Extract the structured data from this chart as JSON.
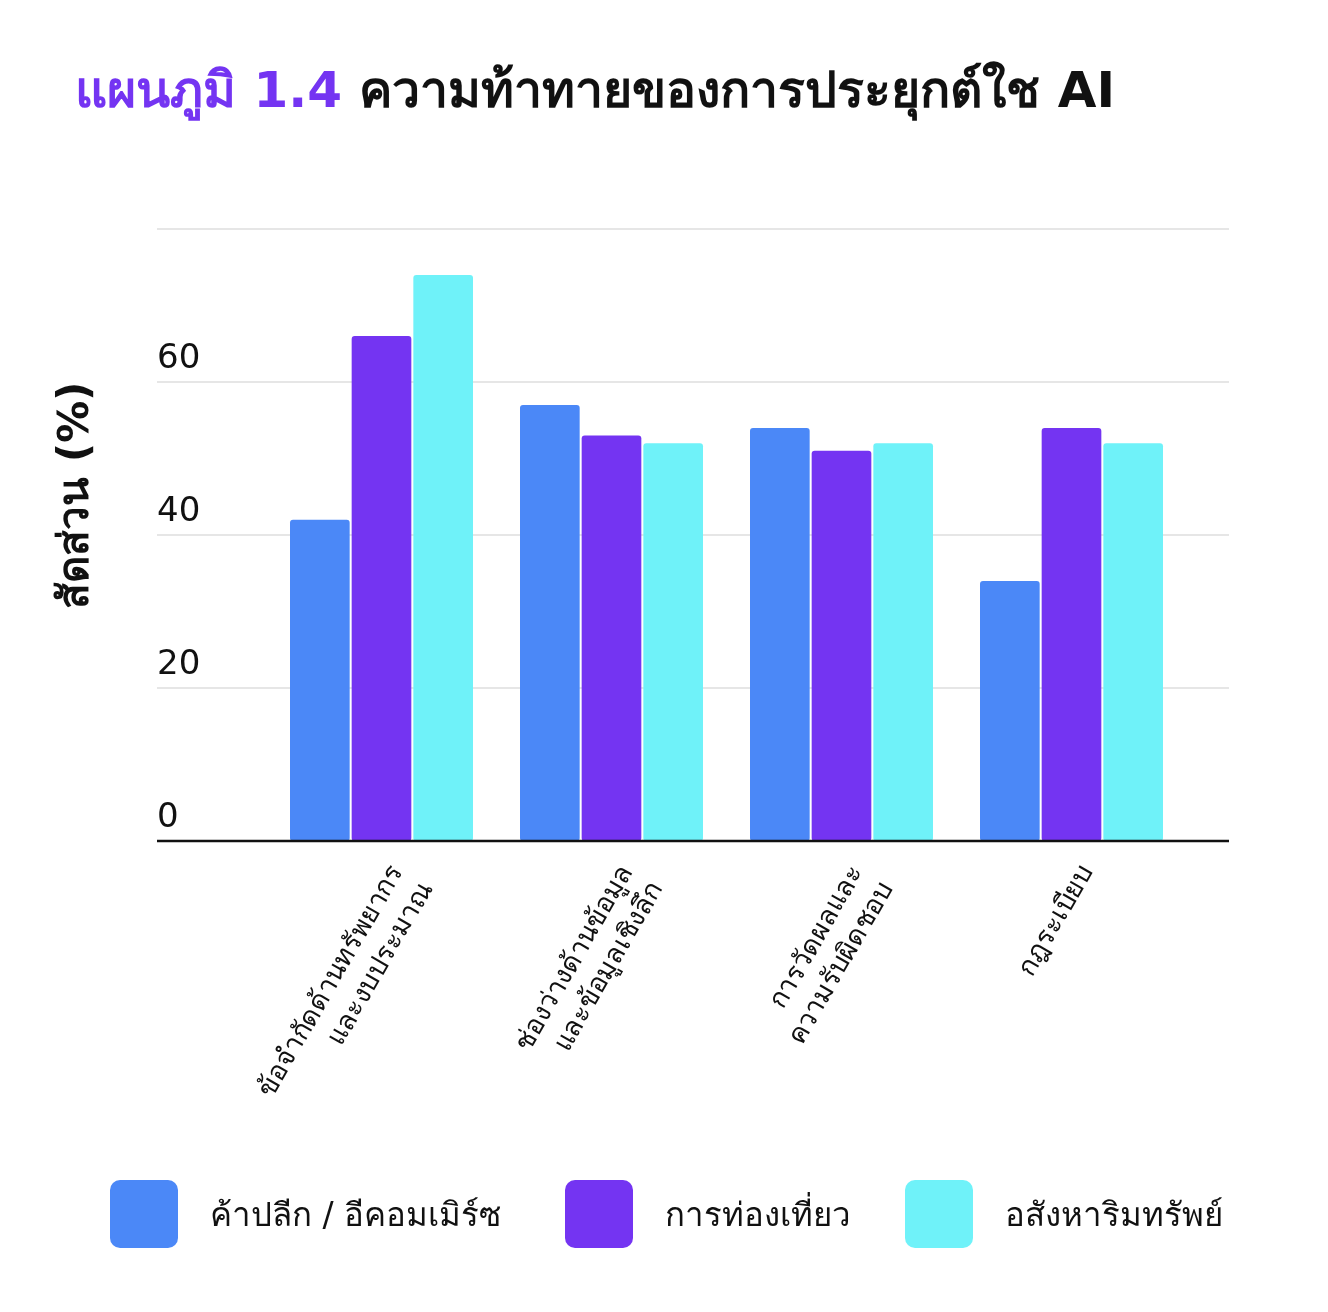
{
  "chart_data": {
    "type": "bar",
    "title": "แผนภูมิ 1.4 ความท้าทายของการประยุกต์ใช AI",
    "ylabel": "สัดส่วน (%)",
    "categories": [
      "ข้อจำกัดด้านทรัพยากร\nและงบประมาณ",
      "ช่องว่างด้านข้อมูล\nและข้อมูลเชิงลึก",
      "การวัดผลและ\nความรับผิดชอบ",
      "กฎระเบียบ"
    ],
    "series": [
      {
        "name": "ค้าปลีก / อีคอมเมิร์ซ",
        "color": "#4b88f7",
        "values": [
          42,
          57,
          54,
          34
        ]
      },
      {
        "name": "การท่องเที่ยว",
        "color": "#7434f2",
        "values": [
          66,
          53,
          51,
          54
        ]
      },
      {
        "name": "อสังหาริมทรัพย์",
        "color": "#6ff2f9",
        "values": [
          74,
          52,
          52,
          52
        ]
      }
    ],
    "ylim": [
      0,
      80
    ],
    "yticks": [
      0,
      20,
      40,
      60,
      {
        "value": 80,
        "label": null
      }
    ],
    "grid": "y",
    "legend": "bottom"
  }
}
